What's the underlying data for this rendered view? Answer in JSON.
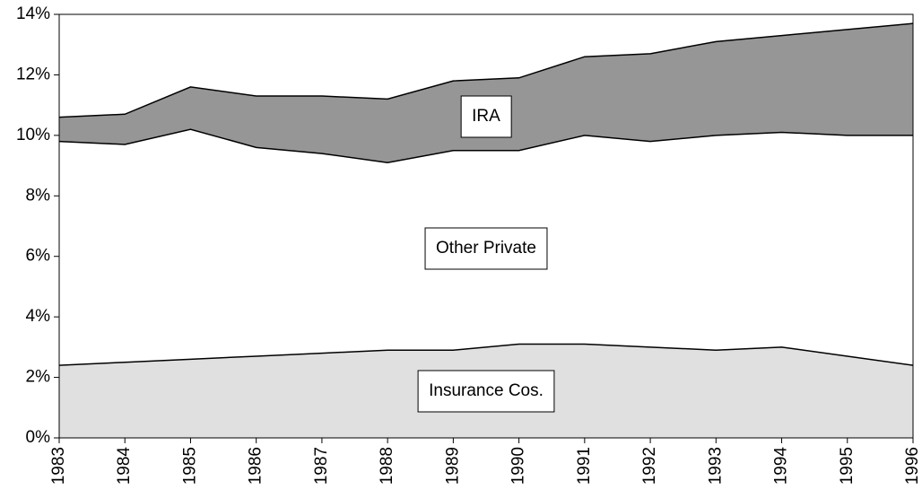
{
  "chart_data": {
    "type": "stacked-area",
    "categories": [
      "1983",
      "1984",
      "1985",
      "1986",
      "1987",
      "1988",
      "1989",
      "1990",
      "1991",
      "1992",
      "1993",
      "1994",
      "1995",
      "1996"
    ],
    "series": [
      {
        "name": "Insurance Cos.",
        "color": "#e0e0e0",
        "values": [
          2.4,
          2.5,
          2.6,
          2.7,
          2.8,
          2.9,
          2.9,
          3.1,
          3.1,
          3.0,
          2.9,
          3.0,
          2.7,
          2.4
        ]
      },
      {
        "name": "Other Private",
        "color": "#ffffff",
        "values": [
          7.4,
          7.2,
          7.6,
          6.9,
          6.6,
          6.2,
          6.6,
          6.4,
          6.9,
          6.8,
          7.1,
          7.1,
          7.3,
          7.6
        ]
      },
      {
        "name": "IRA",
        "color": "#969696",
        "values": [
          0.8,
          1.0,
          1.4,
          1.7,
          1.9,
          2.1,
          2.3,
          2.4,
          2.6,
          2.9,
          3.1,
          3.2,
          3.5,
          3.7
        ]
      }
    ],
    "ylim": [
      0,
      14
    ],
    "yticks": [
      {
        "value": 0,
        "label": "0%"
      },
      {
        "value": 2,
        "label": "2%"
      },
      {
        "value": 4,
        "label": "4%"
      },
      {
        "value": 6,
        "label": "6%"
      },
      {
        "value": 8,
        "label": "8%"
      },
      {
        "value": 10,
        "label": "10%"
      },
      {
        "value": 12,
        "label": "12%"
      },
      {
        "value": 14,
        "label": "14%"
      }
    ]
  }
}
